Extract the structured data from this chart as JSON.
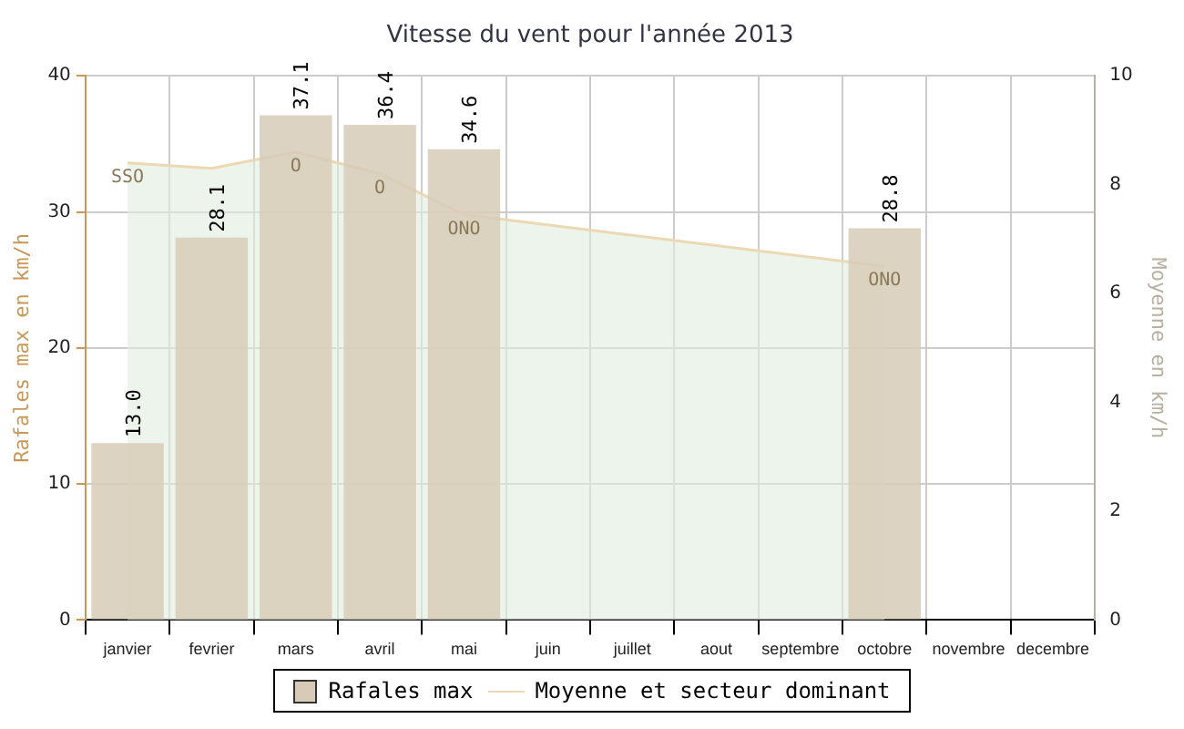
{
  "chart_data": {
    "type": "bar",
    "title": "Vitesse du vent pour l'année 2013",
    "ylabel": "Rafales max en km/h",
    "y2label": "Moyenne en km/h",
    "categories": [
      "janvier",
      "fevrier",
      "mars",
      "avril",
      "mai",
      "juin",
      "juillet",
      "aout",
      "septembre",
      "octobre",
      "novembre",
      "decembre"
    ],
    "series": [
      {
        "name": "Rafales max",
        "color": "#d7cbb8",
        "values": [
          13.0,
          28.1,
          37.1,
          36.4,
          34.6,
          null,
          null,
          null,
          null,
          28.8,
          null,
          null
        ],
        "value_labels": [
          "13.0",
          "28.1",
          "37.1",
          "36.4",
          "34.6",
          null,
          null,
          null,
          null,
          "28.8",
          null,
          null
        ]
      },
      {
        "name": "Moyenne et secteur dominant",
        "type": "area",
        "axis": "y2",
        "color": "#ecd9b4",
        "values": [
          8.4,
          8.3,
          8.6,
          8.2,
          7.45,
          null,
          null,
          null,
          null,
          6.5,
          null,
          null
        ]
      }
    ],
    "annotations": [
      {
        "text": "SSO",
        "x": "janvier"
      },
      "O",
      "O",
      "ONO",
      {
        "text": "ONO",
        "x": "octobre"
      }
    ],
    "ylim": [
      0,
      40
    ],
    "yticks": [
      0,
      10,
      20,
      30,
      40
    ],
    "y2lim": [
      0,
      10
    ],
    "y2ticks": [
      0,
      2,
      4,
      6,
      8,
      10
    ],
    "grid": true,
    "legend": "bottom"
  }
}
